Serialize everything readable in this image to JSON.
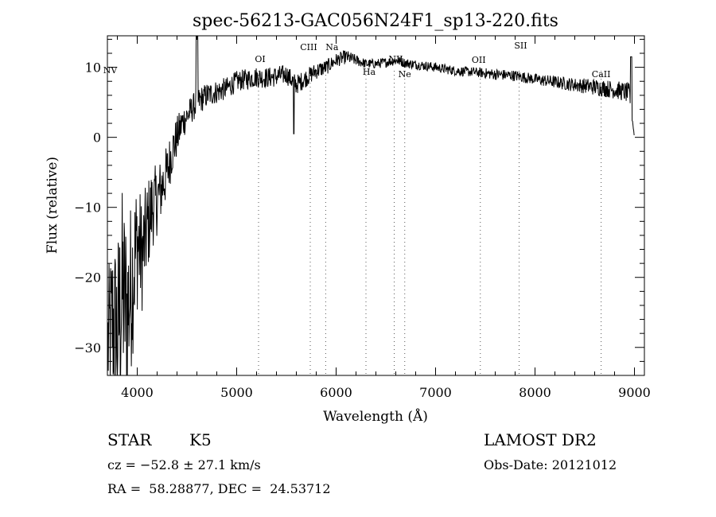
{
  "chart_data": {
    "type": "line",
    "title": "spec-56213-GAC056N24F1_sp13-220.fits",
    "xlabel": "Wavelength (Å)",
    "ylabel": "Flux (relative)",
    "xlim": [
      3700,
      9100
    ],
    "ylim": [
      -34,
      14.5
    ],
    "xticks": [
      4000,
      5000,
      6000,
      7000,
      8000,
      9000
    ],
    "yticks": [
      -30,
      -20,
      -10,
      0,
      10
    ],
    "spectrum_anchors": {
      "x": [
        3700,
        3750,
        3800,
        3850,
        3900,
        3950,
        4000,
        4050,
        4100,
        4150,
        4200,
        4250,
        4300,
        4350,
        4400,
        4450,
        4500,
        4550,
        4600,
        4700,
        4800,
        4900,
        5000,
        5100,
        5200,
        5300,
        5400,
        5500,
        5600,
        5700,
        5800,
        5900,
        6000,
        6100,
        6200,
        6300,
        6400,
        6500,
        6600,
        6700,
        6800,
        7000,
        7200,
        7400,
        7600,
        7800,
        8000,
        8200,
        8400,
        8600,
        8800,
        8900,
        8950,
        9000
      ],
      "y": [
        -30,
        -26,
        -28,
        -22,
        -25,
        -20,
        -15,
        -17,
        -13,
        -10,
        -9,
        -7,
        -5,
        -2,
        0,
        2,
        3,
        4,
        5,
        6,
        6.5,
        7,
        8,
        8.3,
        8.6,
        8.5,
        8.7,
        9,
        7.5,
        8.5,
        9.5,
        10,
        11,
        11.5,
        11,
        10.5,
        10.5,
        10.7,
        11,
        10.6,
        10.4,
        10,
        9.5,
        9.3,
        9,
        8.8,
        8.3,
        7.9,
        7.5,
        7.2,
        6.8,
        6.5,
        6.2,
        0
      ],
      "noise": [
        10,
        12,
        14,
        15,
        14,
        12,
        10,
        8,
        7,
        6,
        5,
        4.5,
        4,
        3.5,
        3,
        2.5,
        2.2,
        2,
        2,
        1.8,
        1.7,
        1.6,
        1.5,
        1.5,
        1.5,
        1.5,
        1.5,
        1.4,
        1.4,
        1.3,
        1.2,
        1.1,
        1,
        1,
        0.8,
        0.7,
        0.7,
        0.7,
        0.7,
        0.7,
        0.7,
        0.7,
        0.7,
        0.7,
        0.8,
        0.8,
        0.8,
        0.9,
        1,
        1.2,
        1.3,
        1.4,
        1.5,
        0
      ]
    },
    "spectral_lines": [
      {
        "name": "NV",
        "wavelength": 3760
      },
      {
        "name": "OI",
        "wavelength": 5220
      },
      {
        "name": "CIII",
        "wavelength": 5740
      },
      {
        "name": "Na",
        "wavelength": 5895
      },
      {
        "name": "Ha",
        "wavelength": 6300
      },
      {
        "name": "NII",
        "wavelength": 6584
      },
      {
        "name": "Ne",
        "wavelength": 6690
      },
      {
        "name": "OII",
        "wavelength": 7450
      },
      {
        "name": "SII",
        "wavelength": 7840
      },
      {
        "name": "CaII",
        "wavelength": 8665
      }
    ],
    "grid": false
  },
  "info": {
    "object_class": "STAR",
    "subclass": "K5",
    "survey": "LAMOST DR2",
    "cz": "cz = −52.8 ± 27.1 km/s",
    "obs_date": "Obs-Date: 20121012",
    "coords": "RA =  58.28877, DEC =  24.53712"
  }
}
